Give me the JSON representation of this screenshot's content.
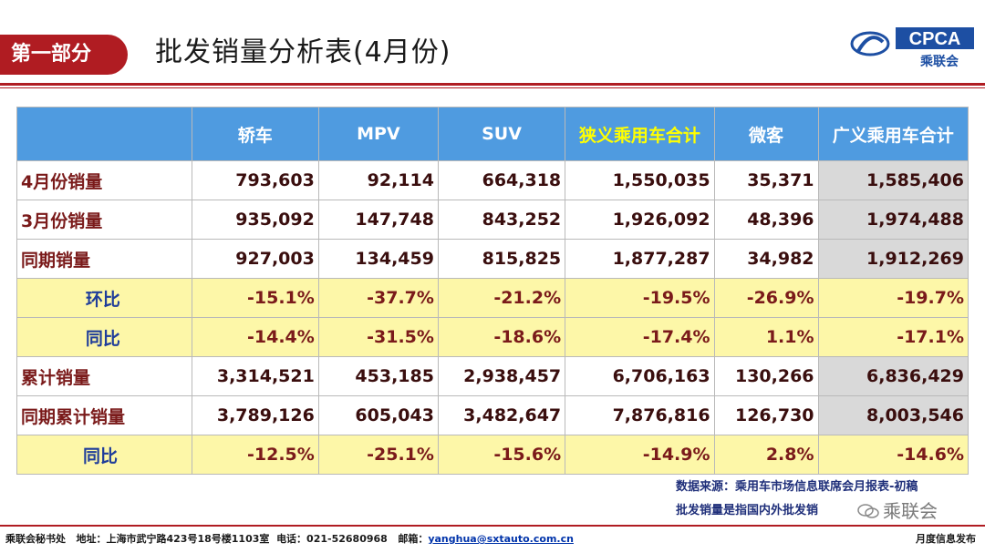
{
  "header": {
    "section_tag": "第一部分",
    "title": "批发销量分析表(4月份)",
    "logo_text": "CPCA",
    "logo_subtext": "乘联会",
    "logo_mark": "CPCA"
  },
  "table": {
    "columns": [
      "轿车",
      "MPV",
      "SUV",
      "狭义乘用车合计",
      "微客",
      "广义乘用车合计"
    ],
    "rows": [
      {
        "label": "4月份销量",
        "values": [
          "793,603",
          "92,114",
          "664,318",
          "1,550,035",
          "35,371",
          "1,585,406"
        ]
      },
      {
        "label": "3月份销量",
        "values": [
          "935,092",
          "147,748",
          "843,252",
          "1,926,092",
          "48,396",
          "1,974,488"
        ]
      },
      {
        "label": "同期销量",
        "values": [
          "927,003",
          "134,459",
          "815,825",
          "1,877,287",
          "34,982",
          "1,912,269"
        ]
      },
      {
        "label": "环比",
        "values": [
          "-15.1%",
          "-37.7%",
          "-21.2%",
          "-19.5%",
          "-26.9%",
          "-19.7%"
        ]
      },
      {
        "label": "同比",
        "values": [
          "-14.4%",
          "-31.5%",
          "-18.6%",
          "-17.4%",
          "1.1%",
          "-17.1%"
        ]
      },
      {
        "label": "累计销量",
        "values": [
          "3,314,521",
          "453,185",
          "2,938,457",
          "6,706,163",
          "130,266",
          "6,836,429"
        ]
      },
      {
        "label": "同期累计销量",
        "values": [
          "3,789,126",
          "605,043",
          "3,482,647",
          "7,876,816",
          "126,730",
          "8,003,546"
        ]
      },
      {
        "label": "同比",
        "values": [
          "-12.5%",
          "-25.1%",
          "-15.6%",
          "-14.9%",
          "2.8%",
          "-14.6%"
        ]
      }
    ]
  },
  "notes": {
    "source": "数据来源：乘用车市场信息联席会月报表-初稿",
    "definition": "批发销量是指国内外批发销"
  },
  "watermark": "乘联会",
  "footer": {
    "org": "乘联会秘书处",
    "address": "地址：上海市武宁路423号18号楼1103室",
    "phone": "电话：021-52680968",
    "email_label": "邮箱：",
    "email": "yanghua@sxtauto.com.cn",
    "right": "月度信息发布"
  },
  "colors": {
    "brand_red": "#b01c22",
    "header_blue": "#4f9be0",
    "ratio_yellow": "#fdf7a8",
    "total_gray": "#d9d9d9"
  }
}
